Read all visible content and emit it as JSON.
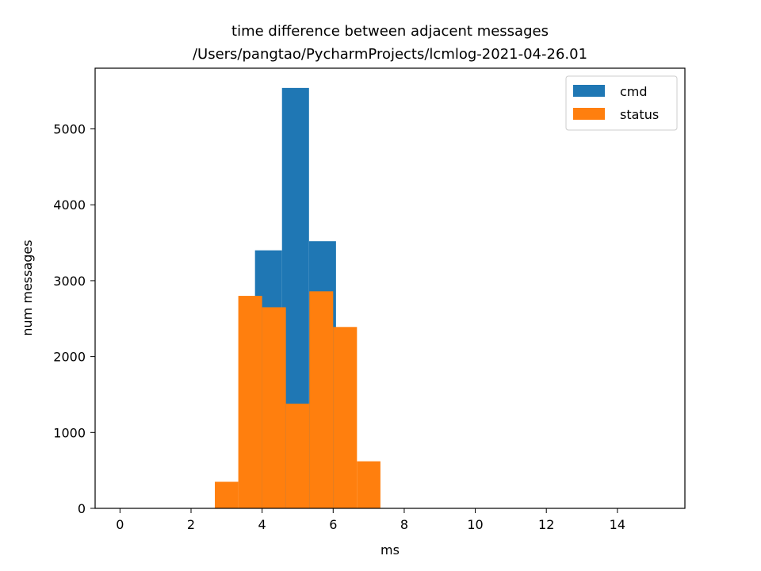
{
  "chart_data": {
    "type": "bar",
    "title_line1": "time difference between adjacent messages",
    "title_line2": "/Users/pangtao/PycharmProjects/lcmlog-2021-04-26.01",
    "xlabel": "ms",
    "ylabel": "num messages",
    "xlim": [
      -0.7,
      15.9
    ],
    "ylim": [
      0,
      5800
    ],
    "xticks": [
      "0",
      "2",
      "4",
      "6",
      "8",
      "10",
      "12",
      "14"
    ],
    "yticks": [
      "0",
      "1000",
      "2000",
      "3000",
      "4000",
      "5000"
    ],
    "legend_position": "top-right",
    "series": [
      {
        "name": "cmd",
        "color": "#1f77b4",
        "bins": [
          {
            "x0": 0.0,
            "x1": 0.76,
            "value": 0
          },
          {
            "x0": 0.76,
            "x1": 1.52,
            "value": 0
          },
          {
            "x0": 1.52,
            "x1": 2.28,
            "value": 0
          },
          {
            "x0": 2.28,
            "x1": 3.04,
            "value": 0
          },
          {
            "x0": 3.04,
            "x1": 3.8,
            "value": 0
          },
          {
            "x0": 3.8,
            "x1": 4.56,
            "value": 3400
          },
          {
            "x0": 4.56,
            "x1": 5.32,
            "value": 5540
          },
          {
            "x0": 5.32,
            "x1": 6.08,
            "value": 3520
          },
          {
            "x0": 6.08,
            "x1": 6.84,
            "value": 0
          },
          {
            "x0": 6.84,
            "x1": 7.6,
            "value": 0
          },
          {
            "x0": 7.6,
            "x1": 8.36,
            "value": 0
          },
          {
            "x0": 8.36,
            "x1": 9.12,
            "value": 0
          },
          {
            "x0": 9.12,
            "x1": 9.88,
            "value": 0
          },
          {
            "x0": 9.88,
            "x1": 10.64,
            "value": 0
          },
          {
            "x0": 10.64,
            "x1": 11.4,
            "value": 0
          },
          {
            "x0": 11.4,
            "x1": 12.16,
            "value": 0
          },
          {
            "x0": 12.16,
            "x1": 12.92,
            "value": 0
          },
          {
            "x0": 12.92,
            "x1": 13.68,
            "value": 0
          },
          {
            "x0": 13.68,
            "x1": 14.44,
            "value": 0
          },
          {
            "x0": 14.44,
            "x1": 15.2,
            "value": 0
          }
        ]
      },
      {
        "name": "status",
        "color": "#ff7f0e",
        "bins": [
          {
            "x0": 2.67,
            "x1": 3.33,
            "value": 350
          },
          {
            "x0": 3.33,
            "x1": 4.0,
            "value": 2800
          },
          {
            "x0": 4.0,
            "x1": 4.67,
            "value": 2650
          },
          {
            "x0": 4.67,
            "x1": 5.33,
            "value": 1380
          },
          {
            "x0": 5.33,
            "x1": 6.0,
            "value": 2860
          },
          {
            "x0": 6.0,
            "x1": 6.67,
            "value": 2390
          },
          {
            "x0": 6.67,
            "x1": 7.33,
            "value": 620
          }
        ]
      }
    ]
  }
}
